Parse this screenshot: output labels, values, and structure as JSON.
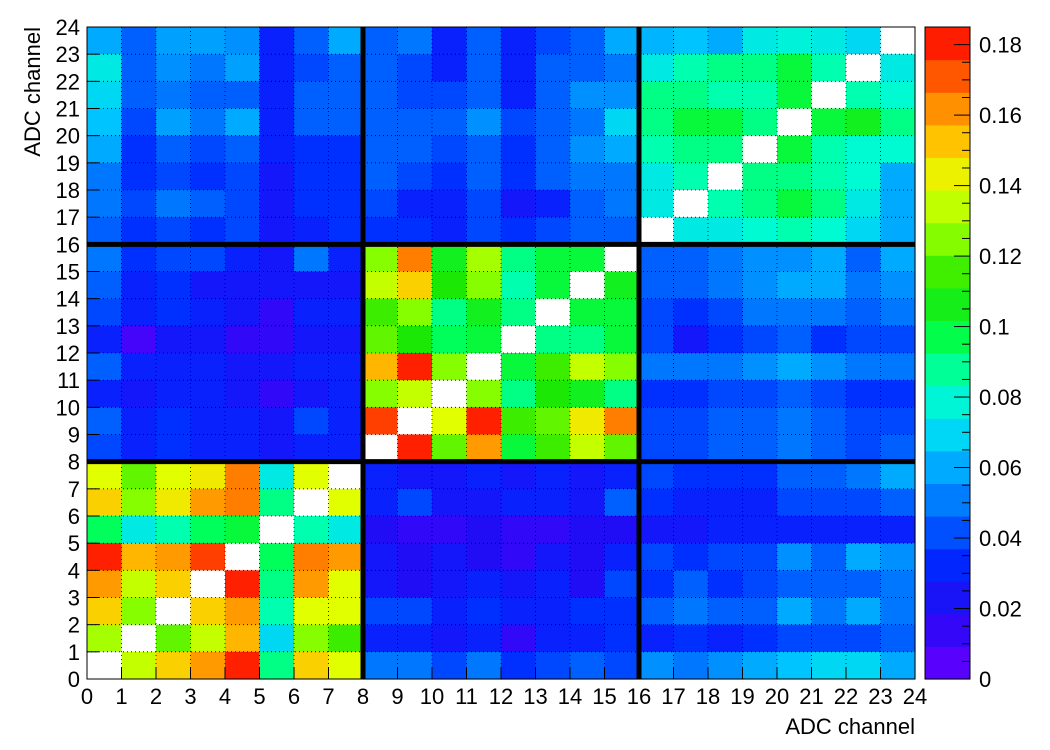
{
  "chart_data": {
    "type": "heatmap",
    "title": "",
    "xlabel": "ADC channel",
    "ylabel": "ADC channel",
    "xlim": [
      0,
      24
    ],
    "ylim": [
      0,
      24
    ],
    "x_ticks": [
      "0",
      "1",
      "2",
      "3",
      "4",
      "5",
      "6",
      "7",
      "8",
      "9",
      "10",
      "11",
      "12",
      "13",
      "14",
      "15",
      "16",
      "17",
      "18",
      "19",
      "20",
      "21",
      "22",
      "23",
      "24"
    ],
    "y_ticks": [
      "0",
      "1",
      "2",
      "3",
      "4",
      "5",
      "6",
      "7",
      "8",
      "9",
      "10",
      "11",
      "12",
      "13",
      "14",
      "15",
      "16",
      "17",
      "18",
      "19",
      "20",
      "21",
      "22",
      "23",
      "24"
    ],
    "colorbar": {
      "min": 0,
      "max": 0.185,
      "tick_values": [
        0,
        0.02,
        0.04,
        0.06,
        0.08,
        0.1,
        0.12,
        0.14,
        0.16,
        0.18
      ],
      "tick_labels": [
        "0",
        "0.02",
        "0.04",
        "0.06",
        "0.08",
        "0.1",
        "0.12",
        "0.14",
        "0.16",
        "0.18"
      ]
    },
    "grid": true,
    "block_dividers": [
      8,
      16
    ],
    "z_rows_top_to_bottom": [
      [
        0.06,
        0.045,
        0.058,
        0.058,
        0.055,
        0.03,
        0.045,
        0.06,
        0.045,
        0.05,
        0.03,
        0.045,
        0.03,
        0.04,
        0.045,
        0.06,
        0.062,
        0.065,
        0.06,
        0.075,
        0.078,
        0.075,
        0.07,
        null
      ],
      [
        0.075,
        0.045,
        0.055,
        0.05,
        0.058,
        0.03,
        0.04,
        0.045,
        0.045,
        0.04,
        0.03,
        0.045,
        0.03,
        0.045,
        0.045,
        0.05,
        0.075,
        0.085,
        0.09,
        0.09,
        0.1,
        0.085,
        null,
        0.075
      ],
      [
        0.07,
        0.045,
        0.05,
        0.045,
        0.045,
        0.03,
        0.045,
        0.045,
        0.045,
        0.04,
        0.04,
        0.045,
        0.03,
        0.045,
        0.055,
        0.055,
        0.09,
        0.09,
        0.085,
        0.085,
        0.1,
        null,
        0.085,
        0.08
      ],
      [
        0.065,
        0.04,
        0.058,
        0.05,
        0.06,
        0.03,
        0.045,
        0.045,
        0.045,
        0.045,
        0.045,
        0.055,
        0.04,
        0.045,
        0.05,
        0.07,
        0.09,
        0.1,
        0.1,
        0.09,
        null,
        0.1,
        0.105,
        0.09
      ],
      [
        0.06,
        0.035,
        0.045,
        0.04,
        0.045,
        0.03,
        0.035,
        0.035,
        0.045,
        0.045,
        0.04,
        0.045,
        0.035,
        0.045,
        0.055,
        0.06,
        0.085,
        0.09,
        0.09,
        null,
        0.1,
        0.085,
        0.08,
        0.08
      ],
      [
        0.05,
        0.035,
        0.04,
        0.035,
        0.04,
        0.025,
        0.035,
        0.035,
        0.045,
        0.04,
        0.035,
        0.045,
        0.035,
        0.045,
        0.05,
        0.05,
        0.075,
        0.085,
        null,
        0.09,
        0.09,
        0.085,
        0.08,
        0.06
      ],
      [
        0.05,
        0.04,
        0.05,
        0.045,
        0.04,
        0.025,
        0.035,
        0.035,
        0.04,
        0.03,
        0.03,
        0.04,
        0.025,
        0.03,
        0.045,
        0.05,
        0.075,
        null,
        0.085,
        0.09,
        0.1,
        0.09,
        0.075,
        0.06
      ],
      [
        0.045,
        0.035,
        0.04,
        0.035,
        0.04,
        0.025,
        0.03,
        0.035,
        0.035,
        0.035,
        0.03,
        0.04,
        0.035,
        0.04,
        0.045,
        0.045,
        null,
        0.075,
        0.075,
        0.08,
        0.085,
        0.08,
        0.07,
        0.06
      ],
      [
        0.05,
        0.035,
        0.04,
        0.04,
        0.03,
        0.025,
        0.05,
        0.03,
        0.125,
        0.165,
        0.105,
        0.13,
        0.09,
        0.1,
        0.1,
        null,
        0.045,
        0.045,
        0.05,
        0.055,
        0.055,
        0.06,
        0.045,
        0.06
      ],
      [
        0.045,
        0.03,
        0.035,
        0.025,
        0.025,
        0.025,
        0.025,
        0.025,
        0.135,
        0.15,
        0.11,
        0.125,
        0.085,
        0.1,
        null,
        0.105,
        0.045,
        0.045,
        0.05,
        0.055,
        0.06,
        0.06,
        0.05,
        0.055
      ],
      [
        0.04,
        0.03,
        0.035,
        0.03,
        0.025,
        0.015,
        0.03,
        0.03,
        0.115,
        0.125,
        0.09,
        0.105,
        0.09,
        null,
        0.1,
        0.1,
        0.04,
        0.035,
        0.04,
        0.05,
        0.05,
        0.05,
        0.045,
        0.05
      ],
      [
        0.03,
        0.01,
        0.025,
        0.025,
        0.015,
        0.015,
        0.025,
        0.025,
        0.12,
        0.11,
        0.095,
        0.1,
        null,
        0.09,
        0.09,
        0.1,
        0.04,
        0.025,
        0.035,
        0.04,
        0.045,
        0.035,
        0.04,
        0.04
      ],
      [
        0.045,
        0.03,
        0.03,
        0.03,
        0.025,
        0.025,
        0.03,
        0.03,
        0.155,
        0.18,
        0.125,
        null,
        0.1,
        0.115,
        0.135,
        0.125,
        0.05,
        0.05,
        0.05,
        0.055,
        0.06,
        0.055,
        0.05,
        0.05
      ],
      [
        0.03,
        0.025,
        0.03,
        0.03,
        0.025,
        0.015,
        0.025,
        0.03,
        0.125,
        0.135,
        null,
        0.125,
        0.09,
        0.11,
        0.105,
        0.09,
        0.035,
        0.035,
        0.04,
        0.04,
        0.045,
        0.04,
        0.035,
        0.035
      ],
      [
        0.045,
        0.03,
        0.035,
        0.03,
        0.03,
        0.025,
        0.04,
        0.03,
        0.175,
        null,
        0.14,
        0.18,
        0.115,
        0.12,
        0.145,
        0.165,
        0.04,
        0.04,
        0.045,
        0.045,
        0.05,
        0.045,
        0.04,
        0.04
      ],
      [
        0.04,
        0.03,
        0.035,
        0.03,
        0.03,
        0.025,
        0.03,
        0.03,
        null,
        0.18,
        0.12,
        0.16,
        0.1,
        0.115,
        0.135,
        0.12,
        0.04,
        0.04,
        0.045,
        0.045,
        0.05,
        0.045,
        0.04,
        0.045
      ],
      [
        0.14,
        0.12,
        0.14,
        0.145,
        0.165,
        0.075,
        0.14,
        null,
        0.03,
        0.025,
        0.025,
        0.03,
        0.025,
        0.03,
        0.025,
        0.03,
        0.04,
        0.035,
        0.035,
        0.035,
        0.045,
        0.045,
        0.05,
        0.06
      ],
      [
        0.15,
        0.125,
        0.145,
        0.16,
        0.165,
        0.09,
        null,
        0.14,
        0.03,
        0.04,
        0.025,
        0.025,
        0.03,
        0.03,
        0.025,
        0.045,
        0.035,
        0.03,
        0.03,
        0.03,
        0.04,
        0.04,
        0.04,
        0.045
      ],
      [
        0.095,
        0.075,
        0.085,
        0.095,
        0.1,
        null,
        0.085,
        0.075,
        0.02,
        0.015,
        0.015,
        0.02,
        0.015,
        0.015,
        0.02,
        0.02,
        0.025,
        0.025,
        0.03,
        0.03,
        0.03,
        0.03,
        0.03,
        0.03
      ],
      [
        0.18,
        0.155,
        0.16,
        0.175,
        null,
        0.095,
        0.165,
        0.16,
        0.025,
        0.02,
        0.025,
        0.02,
        0.015,
        0.025,
        0.02,
        0.03,
        0.04,
        0.035,
        0.04,
        0.04,
        0.055,
        0.045,
        0.06,
        0.055
      ],
      [
        0.16,
        0.135,
        0.15,
        null,
        0.18,
        0.09,
        0.16,
        0.14,
        0.025,
        0.02,
        0.025,
        0.03,
        0.025,
        0.03,
        0.02,
        0.04,
        0.035,
        0.045,
        0.035,
        0.04,
        0.045,
        0.045,
        0.045,
        0.05
      ],
      [
        0.15,
        0.125,
        null,
        0.15,
        0.16,
        0.085,
        0.14,
        0.14,
        0.04,
        0.04,
        0.03,
        0.035,
        0.03,
        0.03,
        0.035,
        0.035,
        0.045,
        0.05,
        0.045,
        0.045,
        0.06,
        0.05,
        0.06,
        0.05
      ],
      [
        0.13,
        null,
        0.12,
        0.135,
        0.155,
        0.07,
        0.125,
        0.115,
        0.03,
        0.03,
        0.025,
        0.03,
        0.015,
        0.03,
        0.03,
        0.035,
        0.03,
        0.035,
        0.03,
        0.035,
        0.04,
        0.04,
        0.04,
        0.045
      ],
      [
        null,
        0.135,
        0.15,
        0.16,
        0.18,
        0.09,
        0.15,
        0.14,
        0.05,
        0.05,
        0.04,
        0.05,
        0.035,
        0.04,
        0.045,
        0.04,
        0.055,
        0.05,
        0.055,
        0.06,
        0.065,
        0.07,
        0.07,
        0.06
      ]
    ]
  }
}
